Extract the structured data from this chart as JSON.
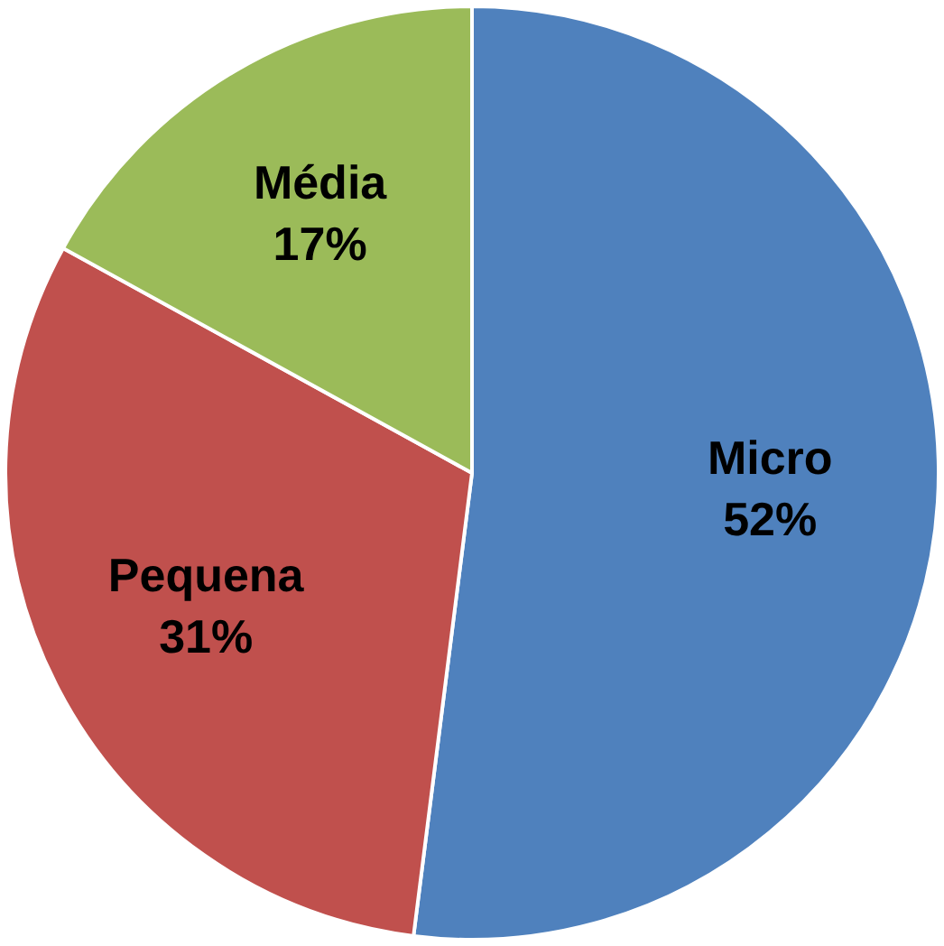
{
  "chart_data": {
    "type": "pie",
    "categories": [
      "Micro",
      "Pequena",
      "Média"
    ],
    "values": [
      52,
      31,
      17
    ],
    "colors": [
      "#4f81bd",
      "#c0504d",
      "#9bbb59"
    ],
    "value_labels": [
      "52%",
      "31%",
      "17%"
    ],
    "legend": false
  }
}
